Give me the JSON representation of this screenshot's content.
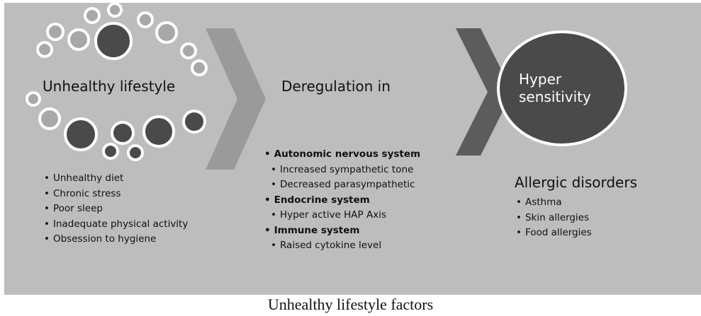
{
  "stage1": {
    "title": "Unhealthy lifestyle",
    "items": [
      {
        "text": "Unhealthy diet"
      },
      {
        "text": "Chronic stress"
      },
      {
        "text": "Poor sleep"
      },
      {
        "text": "Inadequate physical activity"
      },
      {
        "text": "Obsession to hygiene"
      }
    ]
  },
  "stage2": {
    "title": "Deregulation in",
    "items": [
      {
        "text": "Autonomic nervous system",
        "level": 0,
        "bold": true
      },
      {
        "text": "Increased sympathetic tone",
        "level": 1,
        "bold": false
      },
      {
        "text": "Decreased parasympathetic",
        "level": 1,
        "bold": false
      },
      {
        "text": "Endocrine system",
        "level": 0,
        "bold": true
      },
      {
        "text": "Hyper active HAP Axis",
        "level": 1,
        "bold": false
      },
      {
        "text": "Immune system",
        "level": 0,
        "bold": true
      },
      {
        "text": "Raised cytokine level",
        "level": 1,
        "bold": false
      }
    ]
  },
  "stage3": {
    "title": "Hyper sensitivity",
    "subtitle": "Allergic disorders",
    "items": [
      {
        "text": "Asthma"
      },
      {
        "text": "Skin allergies"
      },
      {
        "text": "Food allergies"
      }
    ]
  },
  "caption": "Unhealthy lifestyle factors",
  "colors": {
    "panel": "#bdbdbd",
    "chevron1": "#9a9a9a",
    "chevron2": "#5c5c5c",
    "circle_dark": "#4a4a4a",
    "circle_ring": "#ffffff"
  }
}
